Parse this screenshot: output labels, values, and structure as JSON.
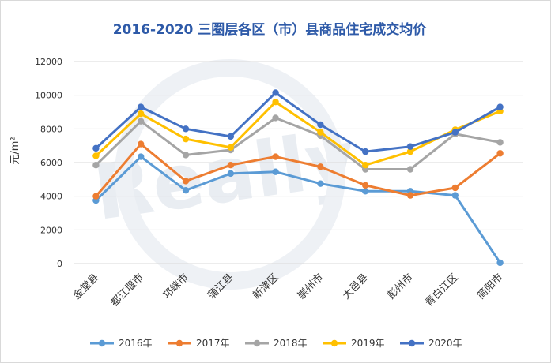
{
  "chart_data": {
    "type": "line",
    "title": "2016-2020 三圈层各区（市）县商品住宅成交均价",
    "ylabel": "元/m²",
    "ylim": [
      0,
      12000
    ],
    "yticks": [
      0,
      2000,
      4000,
      6000,
      8000,
      10000,
      12000
    ],
    "grid": true,
    "legend_position": "bottom",
    "categories": [
      "金堂县",
      "都江堰市",
      "邛崃市",
      "蒲江县",
      "新津区",
      "崇州市",
      "大邑县",
      "彭州市",
      "青白江区",
      "简阳市"
    ],
    "series": [
      {
        "name": "2016年",
        "color": "#5b9bd5",
        "values": [
          3750,
          6350,
          4350,
          5350,
          5450,
          4750,
          4300,
          4300,
          4050,
          50
        ]
      },
      {
        "name": "2017年",
        "color": "#ed7d31",
        "values": [
          4000,
          7100,
          4900,
          5850,
          6350,
          5750,
          4650,
          4050,
          4500,
          6550
        ]
      },
      {
        "name": "2018年",
        "color": "#a5a5a5",
        "values": [
          5850,
          8450,
          6450,
          6750,
          8650,
          7600,
          5600,
          5600,
          7700,
          7200
        ]
      },
      {
        "name": "2019年",
        "color": "#ffc000",
        "values": [
          6400,
          8900,
          7400,
          6900,
          9600,
          7800,
          5850,
          6650,
          7950,
          9050
        ]
      },
      {
        "name": "2020年",
        "color": "#4472c4",
        "values": [
          6850,
          9300,
          8000,
          7550,
          10150,
          8250,
          6650,
          6950,
          7800,
          9300
        ]
      }
    ]
  }
}
